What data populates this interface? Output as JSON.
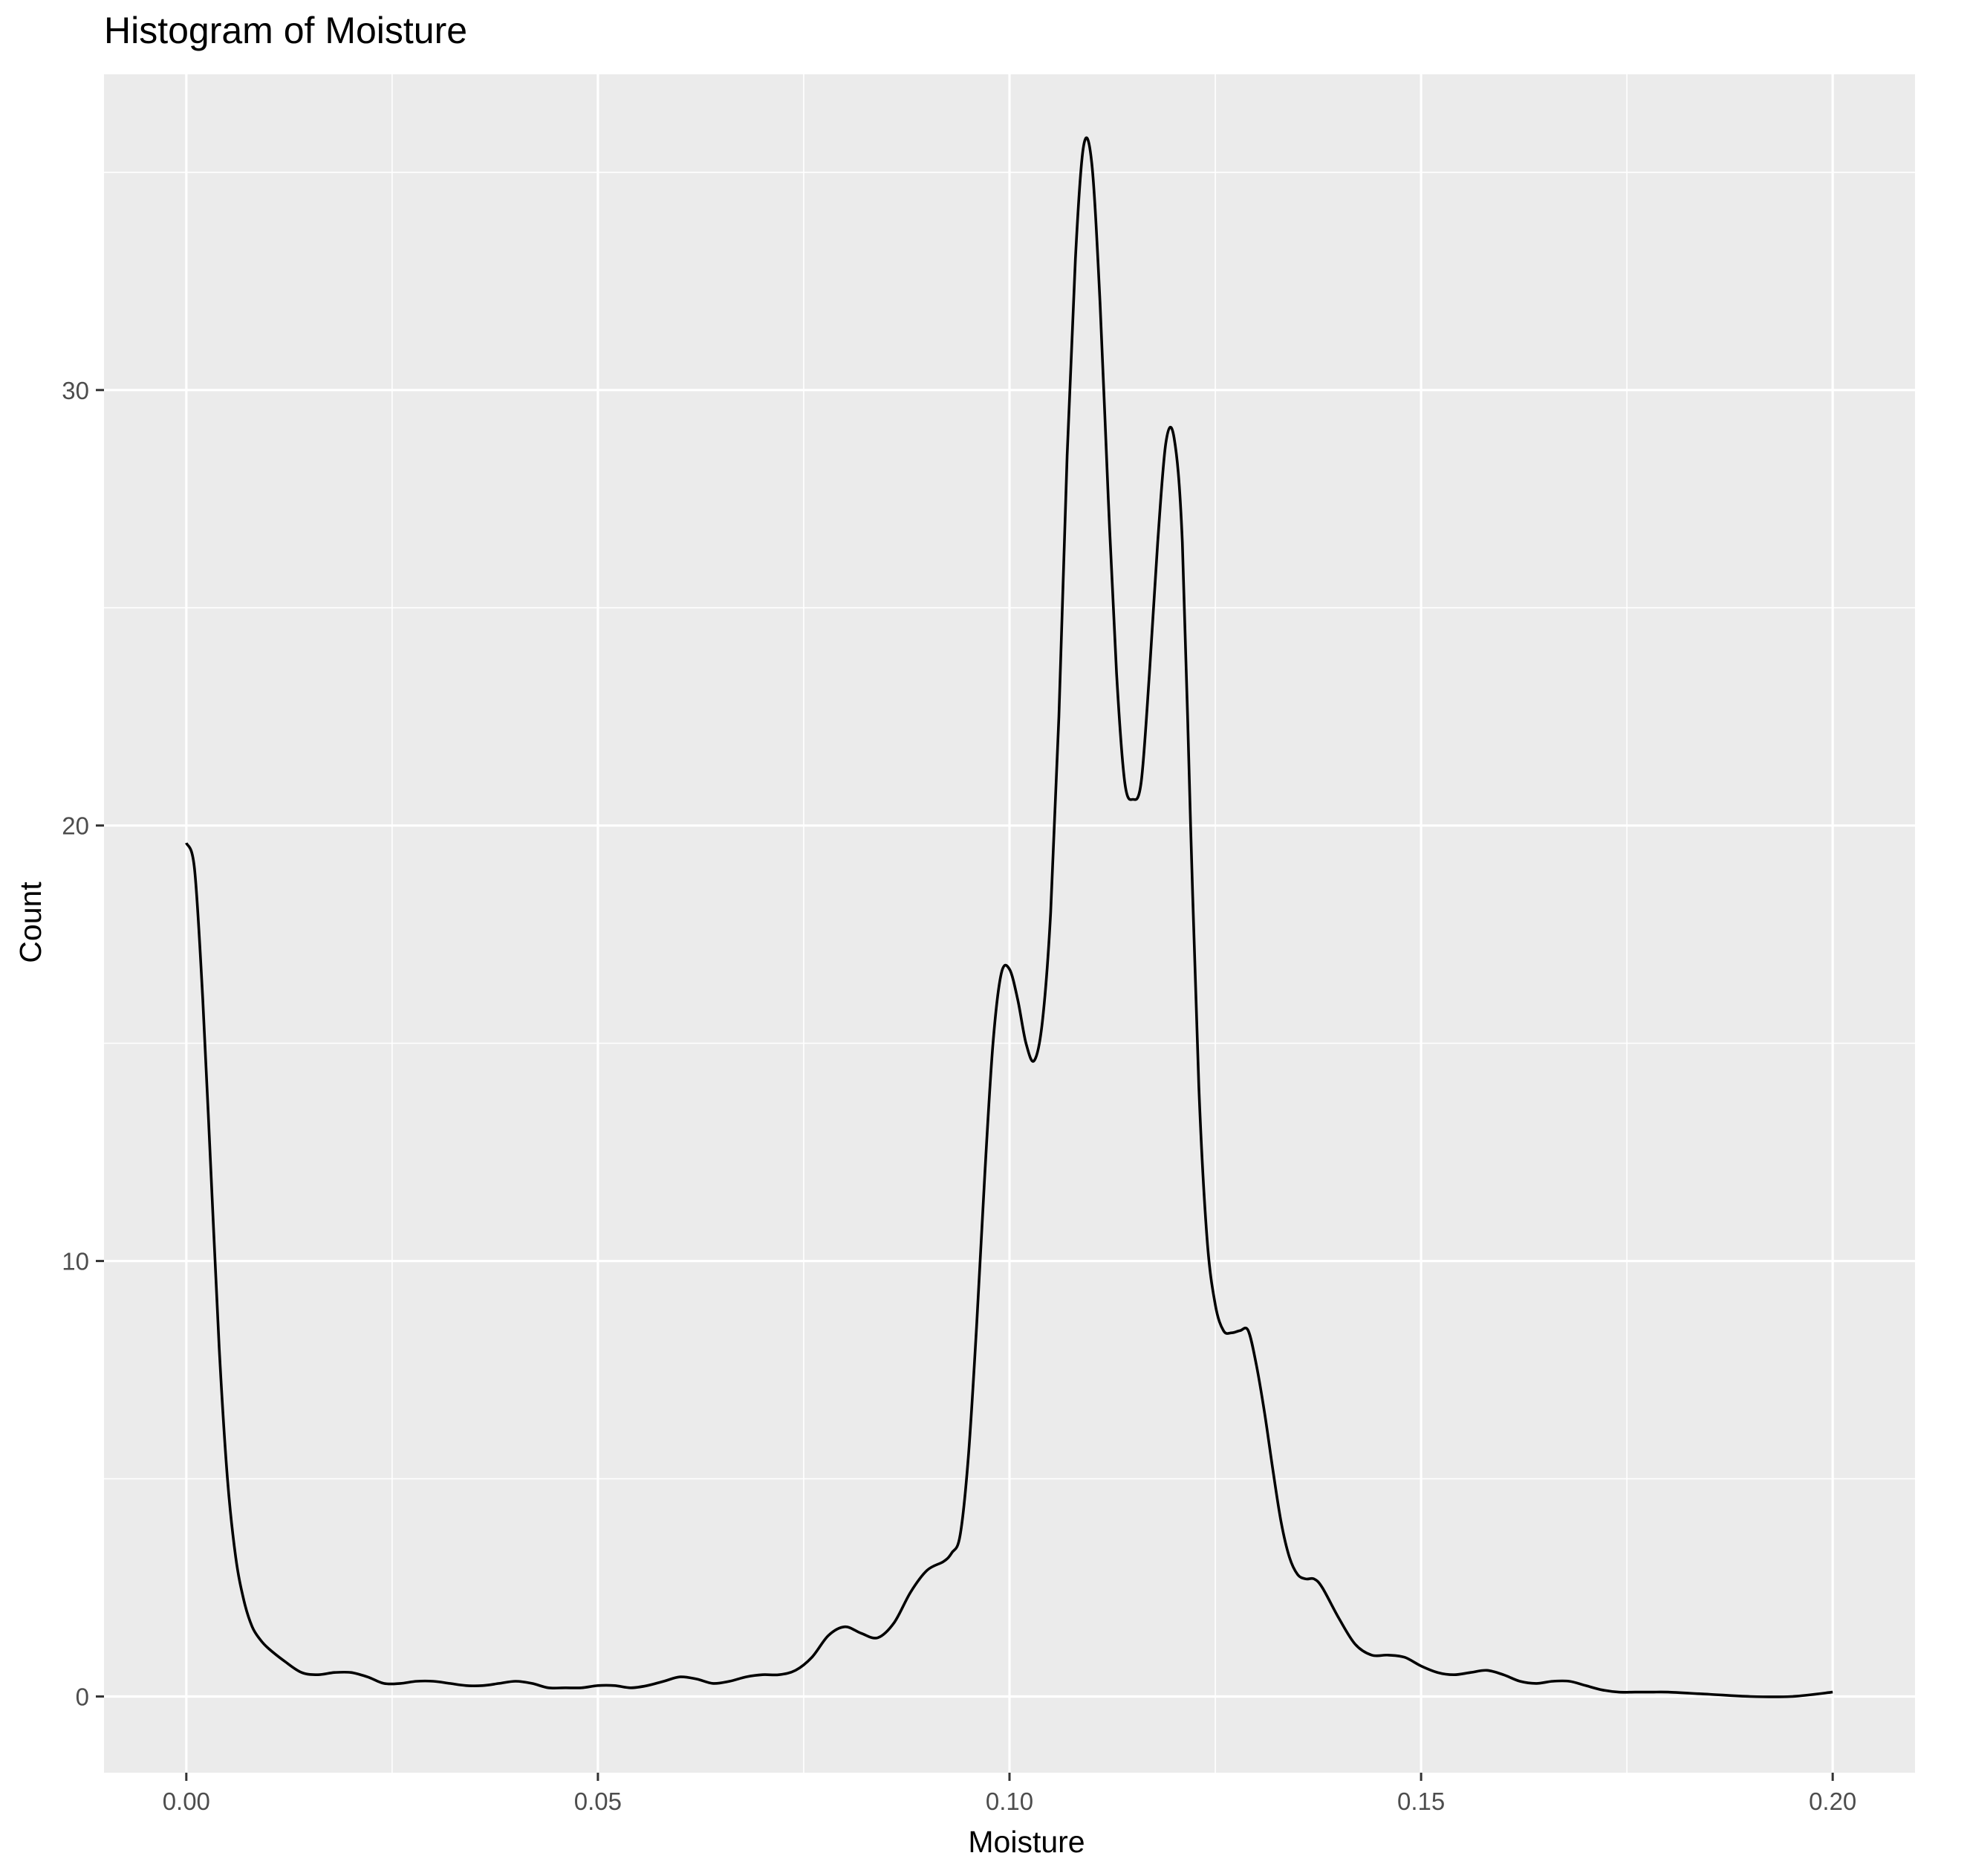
{
  "chart_data": {
    "type": "line",
    "title": "Histogram of Moisture",
    "xlabel": "Moisture",
    "ylabel": "Count",
    "xlim": [
      -0.01,
      0.21
    ],
    "ylim": [
      -1.75,
      37.25
    ],
    "x_ticks": [
      0.0,
      0.05,
      0.1,
      0.15,
      0.2
    ],
    "x_tick_labels": [
      "0.00",
      "0.05",
      "0.10",
      "0.15",
      "0.20"
    ],
    "y_ticks": [
      0,
      10,
      20,
      30
    ],
    "y_tick_labels": [
      "0",
      "10",
      "20",
      "30"
    ],
    "grid": true,
    "panel_background": "#ebebeb",
    "grid_color": "#ffffff",
    "line_color": "#000000",
    "series": [
      {
        "x": [
          0.0,
          0.001,
          0.002,
          0.003,
          0.004,
          0.005,
          0.006,
          0.007,
          0.008,
          0.009,
          0.01,
          0.012,
          0.014,
          0.016,
          0.018,
          0.02,
          0.022,
          0.024,
          0.026,
          0.028,
          0.03,
          0.032,
          0.034,
          0.036,
          0.038,
          0.04,
          0.042,
          0.044,
          0.046,
          0.048,
          0.05,
          0.052,
          0.054,
          0.056,
          0.058,
          0.06,
          0.062,
          0.064,
          0.066,
          0.068,
          0.07,
          0.072,
          0.074,
          0.076,
          0.078,
          0.08,
          0.082,
          0.084,
          0.086,
          0.088,
          0.09,
          0.092,
          0.093,
          0.094,
          0.095,
          0.096,
          0.097,
          0.098,
          0.099,
          0.1,
          0.101,
          0.102,
          0.103,
          0.104,
          0.105,
          0.106,
          0.107,
          0.108,
          0.109,
          0.11,
          0.111,
          0.112,
          0.113,
          0.114,
          0.115,
          0.116,
          0.117,
          0.118,
          0.119,
          0.12,
          0.121,
          0.122,
          0.123,
          0.124,
          0.125,
          0.126,
          0.127,
          0.128,
          0.129,
          0.13,
          0.131,
          0.132,
          0.133,
          0.134,
          0.135,
          0.136,
          0.137,
          0.138,
          0.14,
          0.142,
          0.144,
          0.146,
          0.148,
          0.15,
          0.152,
          0.154,
          0.156,
          0.158,
          0.16,
          0.162,
          0.164,
          0.166,
          0.168,
          0.17,
          0.172,
          0.174,
          0.176,
          0.178,
          0.18,
          0.185,
          0.19,
          0.195,
          0.2
        ],
        "y": [
          19.6,
          19.0,
          16.0,
          12.0,
          8.0,
          5.0,
          3.2,
          2.2,
          1.6,
          1.3,
          1.1,
          0.8,
          0.55,
          0.5,
          0.55,
          0.55,
          0.45,
          0.3,
          0.3,
          0.35,
          0.35,
          0.3,
          0.25,
          0.25,
          0.3,
          0.35,
          0.3,
          0.2,
          0.2,
          0.2,
          0.25,
          0.25,
          0.2,
          0.25,
          0.35,
          0.45,
          0.4,
          0.3,
          0.35,
          0.45,
          0.5,
          0.5,
          0.6,
          0.9,
          1.4,
          1.6,
          1.45,
          1.35,
          1.7,
          2.4,
          2.9,
          3.1,
          3.3,
          3.7,
          5.5,
          8.5,
          12.0,
          15.0,
          16.6,
          16.7,
          16.0,
          15.0,
          14.6,
          15.5,
          18.0,
          22.5,
          28.5,
          33.0,
          35.6,
          35.2,
          32.0,
          27.5,
          23.5,
          21.0,
          20.6,
          21.0,
          23.5,
          26.5,
          28.8,
          28.9,
          26.5,
          20.0,
          14.0,
          10.5,
          9.0,
          8.4,
          8.35,
          8.4,
          8.4,
          7.6,
          6.5,
          5.2,
          4.0,
          3.2,
          2.8,
          2.7,
          2.7,
          2.5,
          1.8,
          1.2,
          0.95,
          0.95,
          0.9,
          0.7,
          0.55,
          0.5,
          0.55,
          0.6,
          0.5,
          0.35,
          0.3,
          0.35,
          0.35,
          0.25,
          0.15,
          0.1,
          0.1,
          0.1,
          0.1,
          0.05,
          0.0,
          0.0,
          0.1
        ]
      }
    ]
  }
}
